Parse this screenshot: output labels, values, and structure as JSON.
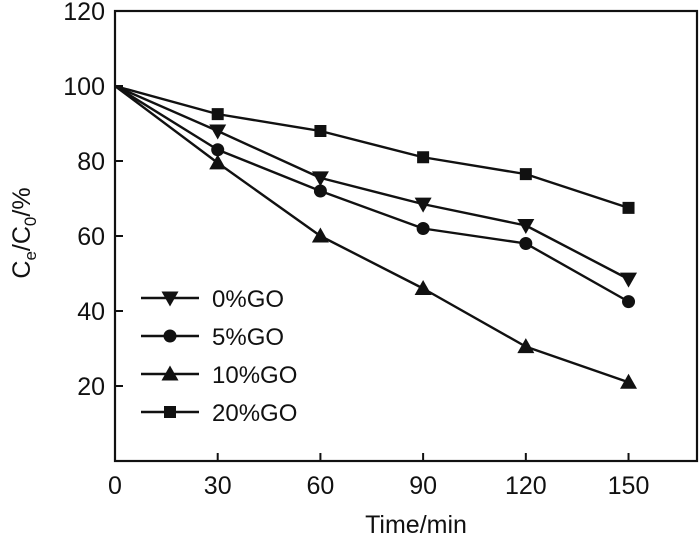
{
  "chart_data": {
    "type": "line",
    "title": "",
    "xlabel": "Time/min",
    "ylabel": {
      "base": "C",
      "sub1": "e",
      "mid": "/C",
      "sub2": "0",
      "suffix": "/%"
    },
    "xlim": [
      0,
      170
    ],
    "ylim": [
      0,
      120
    ],
    "xticks": [
      0,
      30,
      60,
      90,
      120,
      150
    ],
    "yticks": [
      20,
      40,
      60,
      80,
      100,
      120
    ],
    "x": [
      0,
      30,
      60,
      90,
      120,
      150
    ],
    "legend_position": "bottom-left",
    "series": [
      {
        "name": "0%GO",
        "marker": "triangle-down",
        "values": [
          100,
          88,
          75.5,
          68.5,
          62.8,
          48.5
        ]
      },
      {
        "name": "5%GO",
        "marker": "circle",
        "values": [
          100,
          83,
          72,
          62,
          58,
          42.5
        ]
      },
      {
        "name": "10%GO",
        "marker": "triangle-up",
        "values": [
          100,
          79.5,
          60,
          46,
          30.5,
          21
        ]
      },
      {
        "name": "20%GO",
        "marker": "square",
        "values": [
          100,
          92.5,
          88,
          81,
          76.5,
          67.5
        ]
      }
    ],
    "colors": {
      "line": "#111111",
      "marker": "#111111"
    }
  }
}
